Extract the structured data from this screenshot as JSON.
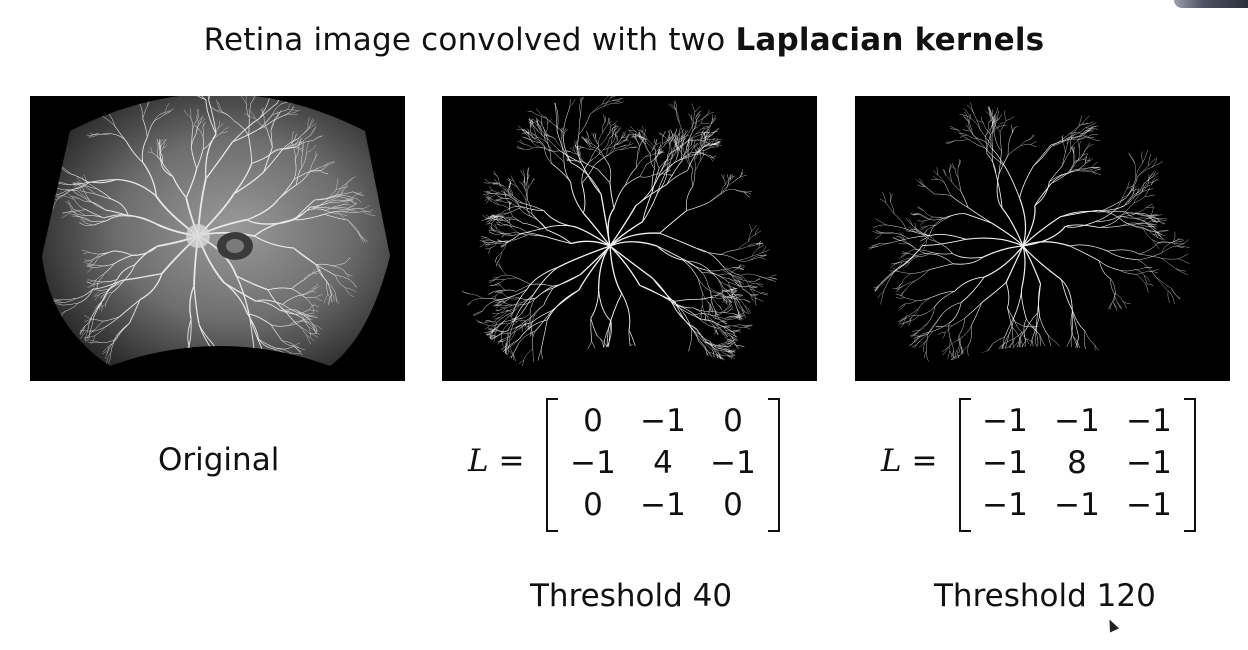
{
  "slide": {
    "title_prefix": "Retina image convolved with two ",
    "title_bold": "Laplacian kernels"
  },
  "panels": [
    {
      "label": "Original"
    },
    {
      "label": "Threshold 40",
      "lhs": "L",
      "matrix": [
        [
          "0",
          "−1",
          "0"
        ],
        [
          "−1",
          "4",
          "−1"
        ],
        [
          "0",
          "−1",
          "0"
        ]
      ]
    },
    {
      "label": "Threshold 120",
      "lhs": "L",
      "matrix": [
        [
          "−1",
          "−1",
          "−1"
        ],
        [
          "−1",
          "8",
          "−1"
        ],
        [
          "−1",
          "−1",
          "−1"
        ]
      ]
    }
  ]
}
